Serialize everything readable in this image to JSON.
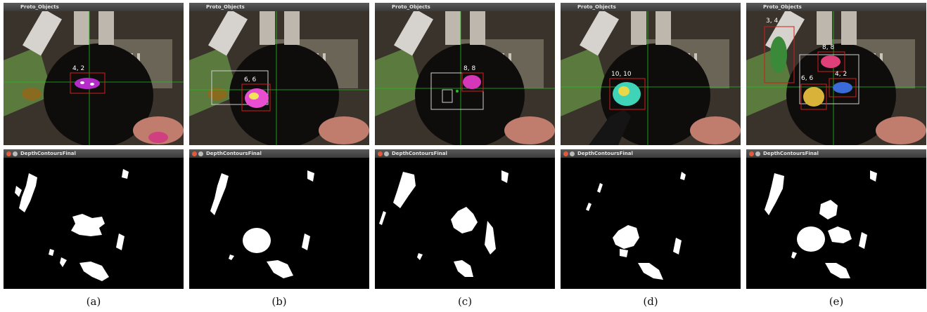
{
  "panels": [
    {
      "caption": "(a)",
      "top_title": "Proto_Objects",
      "bottom_title": "DepthContoursFinal",
      "labels": [
        "4, 2"
      ]
    },
    {
      "caption": "(b)",
      "top_title": "Proto_Objects",
      "bottom_title": "DepthContoursFinal",
      "labels": [
        "6, 6"
      ]
    },
    {
      "caption": "(c)",
      "top_title": "Proto_Objects",
      "bottom_title": "DepthContoursFinal",
      "labels": [
        "8, 8"
      ]
    },
    {
      "caption": "(d)",
      "top_title": "Proto_Objects",
      "bottom_title": "DepthContoursFinal",
      "labels": [
        "10, 10"
      ]
    },
    {
      "caption": "(e)",
      "top_title": "Proto_Objects",
      "bottom_title": "DepthContoursFinal",
      "labels": [
        "3, 4",
        "8, 8",
        "6, 6",
        "4, 2"
      ]
    }
  ],
  "colors": {
    "crosshair": "#1fc21f",
    "box": "#d11b1b",
    "box_gray": "#cfcfcf",
    "blob": "#ffffff",
    "depth_bg": "#000000"
  }
}
